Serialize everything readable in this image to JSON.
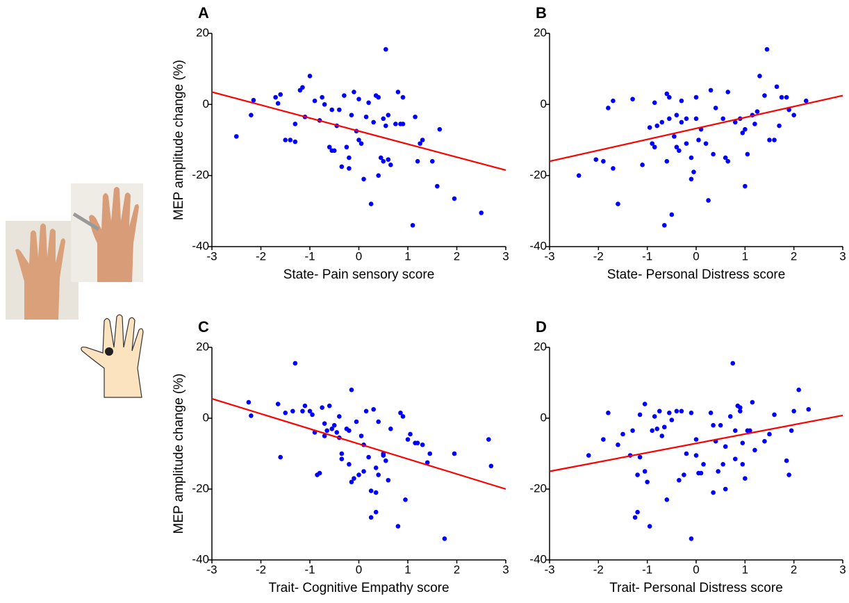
{
  "chart_data": [
    {
      "type": "scatter",
      "panel_label": "A",
      "x_label": "State- Pain sensory score",
      "y_label": "MEP amplitude change (%)",
      "color": "#0000ff",
      "xlim": [
        -3,
        3
      ],
      "ylim": [
        -40,
        20
      ],
      "xticks": [
        -3,
        -2,
        -1,
        0,
        1,
        2,
        3
      ],
      "yticks": [
        -40,
        -20,
        0,
        20
      ],
      "x": [
        -2.5,
        -2.2,
        -2.15,
        -1.7,
        -1.65,
        -1.6,
        -1.5,
        -1.4,
        -1.3,
        -1.3,
        -1.2,
        -1.15,
        -1.1,
        -1,
        -0.9,
        -0.8,
        -0.75,
        -0.7,
        -0.6,
        -0.55,
        -0.55,
        -0.5,
        -0.45,
        -0.4,
        -0.35,
        -0.3,
        -0.25,
        -0.2,
        -0.2,
        -0.15,
        -0.1,
        -0.05,
        0,
        0,
        0.05,
        0.1,
        0.15,
        0.2,
        0.25,
        0.3,
        0.35,
        0.4,
        0.4,
        0.45,
        0.5,
        0.5,
        0.55,
        0.55,
        0.6,
        0.65,
        0.6,
        0.75,
        0.8,
        0.85,
        0.9,
        0.9,
        1.1,
        1.15,
        1.2,
        1.25,
        1.3,
        1.5,
        1.6,
        1.65,
        1.95,
        2.5
      ],
      "values": [
        -9,
        -3,
        1.2,
        2,
        0.3,
        2.8,
        -10,
        -10,
        -10.5,
        -5.5,
        4,
        4.8,
        -3.5,
        8,
        1,
        -4.5,
        2,
        0,
        -12,
        -13,
        -1.5,
        -13,
        -6,
        -1.5,
        -17.5,
        2.5,
        -12,
        -15,
        -18,
        -3,
        3.5,
        -7.5,
        1.5,
        -10,
        -11,
        -21,
        -3.5,
        0.5,
        -28,
        -5,
        2.5,
        2,
        -20,
        -15,
        -16,
        -4,
        -6,
        15.5,
        -3,
        -17,
        -15.5,
        -5.5,
        3.5,
        -5.5,
        2,
        -5.5,
        -34,
        -3.5,
        -16,
        -11,
        -10,
        -16,
        -23,
        -7,
        -26.5,
        -30.5
      ],
      "fit": {
        "x": [
          -3,
          3
        ],
        "values": [
          3.5,
          -18.5
        ],
        "color": "#ff0000"
      }
    },
    {
      "type": "scatter",
      "panel_label": "B",
      "x_label": "State- Personal Distress score",
      "color": "#0000ff",
      "xlim": [
        -3,
        3
      ],
      "ylim": [
        -40,
        20
      ],
      "xticks": [
        -3,
        -2,
        -1,
        0,
        1,
        2,
        3
      ],
      "yticks": [
        -40,
        -20,
        0,
        20
      ],
      "x": [
        -2.4,
        -2.05,
        -1.9,
        -1.8,
        -1.7,
        -1.7,
        -1.6,
        -1.3,
        -1.1,
        -0.95,
        -0.9,
        -0.85,
        -0.85,
        -0.8,
        -0.7,
        -0.65,
        -0.6,
        -0.6,
        -0.55,
        -0.55,
        -0.5,
        -0.45,
        -0.4,
        -0.4,
        -0.35,
        -0.3,
        -0.3,
        -0.2,
        -0.2,
        -0.1,
        -0.1,
        -0.05,
        0,
        0,
        0.05,
        0.1,
        0.2,
        0.25,
        0.3,
        0.35,
        0.4,
        0.55,
        0.6,
        0.65,
        0.65,
        0.8,
        0.9,
        0.95,
        1,
        1,
        1.05,
        1.15,
        1.2,
        1.25,
        1.3,
        1.4,
        1.45,
        1.5,
        1.6,
        1.65,
        1.7,
        1.75,
        1.85,
        1.9,
        2,
        2.25
      ],
      "values": [
        -20,
        -15.5,
        -16,
        -1,
        1,
        -18,
        -28,
        1.5,
        -17,
        -6.5,
        -11,
        -12,
        0.5,
        -6,
        -5,
        -34,
        -16,
        3,
        2,
        -4,
        -31,
        -9,
        -3,
        -12,
        -13,
        -5,
        1,
        -4,
        -11,
        -15,
        -21,
        -19,
        -4,
        2,
        -10,
        -7,
        -11,
        -27,
        4,
        -14,
        -1,
        -4,
        -15,
        -16,
        3.5,
        -5,
        -4,
        -8,
        -7,
        -23,
        -14,
        -3,
        -5.5,
        -2,
        8,
        2.5,
        15.5,
        -10,
        -10,
        5,
        -6,
        2,
        2,
        -1.5,
        -3,
        1
      ],
      "fit": {
        "x": [
          -3,
          3
        ],
        "values": [
          -16,
          2.5
        ],
        "color": "#ff0000"
      }
    },
    {
      "type": "scatter",
      "panel_label": "C",
      "x_label": "Trait- Cognitive Empathy score",
      "y_label": "MEP amplitude change (%)",
      "color": "#0000ff",
      "xlim": [
        -3,
        3
      ],
      "ylim": [
        -40,
        20
      ],
      "xticks": [
        -3,
        -2,
        -1,
        0,
        1,
        2,
        3
      ],
      "yticks": [
        -40,
        -20,
        0,
        20
      ],
      "x": [
        -2.25,
        -2.2,
        -1.6,
        -1.65,
        -1.5,
        -1.35,
        -1.3,
        -1.15,
        -1.1,
        -1,
        -0.95,
        -0.9,
        -0.85,
        -0.8,
        -0.75,
        -0.7,
        -0.7,
        -0.65,
        -0.6,
        -0.55,
        -0.5,
        -0.45,
        -0.4,
        -0.4,
        -0.35,
        -0.35,
        -0.25,
        -0.2,
        -0.2,
        -0.15,
        -0.1,
        -0.15,
        -0.05,
        0,
        0.05,
        0.1,
        0.1,
        0.15,
        0.2,
        0.25,
        0.25,
        0.3,
        0.35,
        0.35,
        0.35,
        0.4,
        0.4,
        0.5,
        0.5,
        0.55,
        0.6,
        0.65,
        0.8,
        0.85,
        0.9,
        0.95,
        1,
        1.05,
        1.15,
        1.2,
        1.3,
        1.4,
        1.45,
        1.75,
        1.95,
        2.65,
        2.7
      ],
      "values": [
        4.5,
        0.7,
        -11,
        4,
        1.5,
        2,
        15.5,
        2,
        3.5,
        2,
        1,
        -4,
        -16,
        -15.5,
        3,
        -5,
        -1.5,
        -3.5,
        3.5,
        -3,
        -2,
        -4,
        -5.5,
        0.5,
        -10,
        -11.5,
        -3,
        -3.5,
        -13,
        8,
        -17,
        -18,
        -1,
        -16,
        -5,
        -15,
        -7.5,
        2,
        -11,
        -20.5,
        -28,
        2.5,
        -14,
        -21,
        -26.5,
        -16,
        -1,
        -10,
        -10.5,
        -12,
        -17.5,
        -3,
        -30.5,
        1.5,
        0.5,
        -23,
        -6,
        -4.5,
        -7,
        -7,
        -7.5,
        -12.5,
        -10,
        -34,
        -10,
        -6,
        -13.5
      ],
      "fit": {
        "x": [
          -3,
          3
        ],
        "values": [
          5.5,
          -20
        ],
        "color": "#ff0000"
      }
    },
    {
      "type": "scatter",
      "panel_label": "D",
      "x_label": "Trait- Personal Distress score",
      "color": "#0000ff",
      "xlim": [
        -3,
        3
      ],
      "ylim": [
        -40,
        20
      ],
      "xticks": [
        -3,
        -2,
        -1,
        0,
        1,
        2,
        3
      ],
      "yticks": [
        -40,
        -20,
        0,
        20
      ],
      "x": [
        -2.2,
        -1.9,
        -1.8,
        -1.6,
        -1.5,
        -1.35,
        -1.3,
        -1.25,
        -1.2,
        -1.2,
        -1.15,
        -1.15,
        -1.05,
        -1.05,
        -1,
        -0.95,
        -0.9,
        -0.85,
        -0.8,
        -0.75,
        -0.7,
        -0.65,
        -0.6,
        -0.55,
        -0.5,
        -0.4,
        -0.35,
        -0.3,
        -0.25,
        -0.2,
        -0.1,
        -0.1,
        0,
        0,
        0.05,
        0.1,
        0.15,
        0.3,
        0.35,
        0.35,
        0.4,
        0.45,
        0.5,
        0.55,
        0.6,
        0.6,
        0.7,
        0.75,
        0.8,
        0.8,
        0.85,
        0.9,
        0.9,
        0.95,
        0.95,
        1,
        1.05,
        1.1,
        1.15,
        1.2,
        1.4,
        1.5,
        1.6,
        1.85,
        1.9,
        1.95,
        2,
        2.1,
        2.3
      ],
      "values": [
        -10.5,
        -6,
        1.5,
        -7.5,
        -4.5,
        -10.5,
        -3.5,
        -28,
        -16,
        -26.5,
        -11,
        1,
        -15,
        4,
        -18,
        -30.5,
        -3.5,
        0.5,
        -3,
        2,
        -5,
        -2.5,
        -23,
        1.5,
        -0.5,
        2,
        -17.5,
        2,
        -16,
        -10,
        1.5,
        -34,
        -10.5,
        -6,
        -15.5,
        -15.5,
        -13,
        1.5,
        -2,
        -21,
        -6.5,
        -15,
        -2,
        -13,
        -20,
        -8,
        0.5,
        15.5,
        -3.5,
        -11.5,
        3.5,
        3,
        2,
        -13,
        -7,
        -17,
        -3.5,
        -3.5,
        4.5,
        -9,
        -6.5,
        -4.5,
        1,
        -12,
        -16,
        -3.5,
        2,
        8,
        2.5
      ],
      "fit": {
        "x": [
          -3,
          3
        ],
        "values": [
          -15,
          0.8
        ],
        "color": "#ff0000"
      }
    }
  ]
}
